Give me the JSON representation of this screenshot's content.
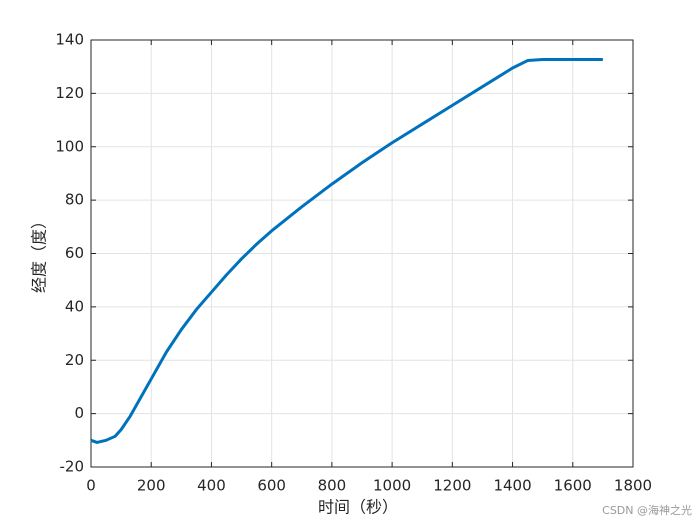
{
  "chart_data": {
    "type": "line",
    "xlabel": "时间（秒）",
    "ylabel": "经度（度）",
    "x": [
      0,
      20,
      50,
      80,
      100,
      130,
      160,
      200,
      250,
      300,
      350,
      400,
      450,
      500,
      550,
      600,
      700,
      800,
      900,
      1000,
      1100,
      1200,
      1300,
      1400,
      1450,
      1500,
      1600,
      1700
    ],
    "values": [
      -10,
      -10.8,
      -10,
      -8.5,
      -6,
      -1,
      5,
      13,
      23,
      31.5,
      39,
      45.5,
      52,
      58,
      63.5,
      68.5,
      77.5,
      86,
      94,
      101.5,
      108.5,
      115.5,
      122.5,
      129.5,
      132.3,
      132.7,
      132.7,
      132.7
    ],
    "color": "#0072bd",
    "xlim": [
      0,
      1800
    ],
    "xticks": [
      0,
      200,
      400,
      600,
      800,
      1000,
      1200,
      1400,
      1600,
      1800
    ],
    "ylim": [
      -20,
      140
    ],
    "yticks": [
      -20,
      0,
      20,
      40,
      60,
      80,
      100,
      120,
      140
    ],
    "grid": true,
    "watermark": "CSDN @海神之光"
  }
}
